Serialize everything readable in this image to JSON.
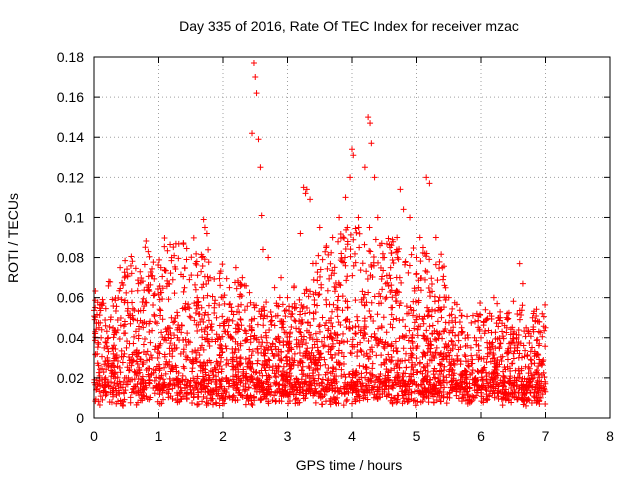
{
  "colors": {
    "series": "#ff0000",
    "background": "#ffffff",
    "axis": "#000000",
    "grid": "#a0a0a0"
  },
  "chart_data": {
    "type": "scatter",
    "title": "Day 335 of 2016, Rate Of TEC Index for receiver mzac",
    "xlabel": "GPS time / hours",
    "ylabel": "ROTI / TECUs",
    "xlim": [
      0,
      8
    ],
    "ylim": [
      0,
      0.18
    ],
    "xticks": [
      0,
      1,
      2,
      3,
      4,
      5,
      6,
      7,
      8
    ],
    "xtick_labels": [
      "0",
      "1",
      "2",
      "3",
      "4",
      "5",
      "6",
      "7",
      "8"
    ],
    "yticks": [
      0,
      0.02,
      0.04,
      0.06,
      0.08,
      0.1,
      0.12,
      0.14,
      0.16,
      0.18
    ],
    "ytick_labels": [
      "0",
      "0.02",
      "0.04",
      "0.06",
      "0.08",
      "0.1",
      "0.12",
      "0.14",
      "0.16",
      "0.18"
    ],
    "grid": true,
    "marker": "+",
    "series": [
      {
        "name": "ROTI",
        "color": "#ff0000",
        "note": "Dense cloud of ~5000 points from 0 to 7 h; values listed are the distinct outliers plus a representative sample of the dense band",
        "x": [
          0.02,
          0.05,
          0.08,
          0.12,
          0.18,
          0.22,
          0.3,
          0.35,
          0.4,
          0.5,
          0.6,
          0.7,
          0.85,
          0.9,
          1.0,
          1.1,
          1.15,
          1.2,
          1.3,
          1.4,
          1.5,
          1.6,
          1.7,
          1.72,
          1.75,
          1.8,
          1.9,
          2.0,
          2.1,
          2.2,
          2.3,
          2.45,
          2.48,
          2.5,
          2.52,
          2.55,
          2.58,
          2.6,
          2.62,
          2.7,
          2.8,
          2.9,
          3.0,
          3.1,
          3.2,
          3.25,
          3.28,
          3.3,
          3.35,
          3.5,
          3.6,
          3.7,
          3.8,
          3.9,
          3.97,
          4.0,
          4.02,
          4.1,
          4.2,
          4.25,
          4.28,
          4.3,
          4.35,
          4.4,
          4.5,
          4.6,
          4.7,
          4.75,
          4.8,
          4.9,
          5.0,
          5.05,
          5.1,
          5.15,
          5.2,
          5.3,
          5.4,
          5.5,
          5.6,
          5.7,
          5.8,
          5.9,
          6.0,
          6.1,
          6.2,
          6.25,
          6.3,
          6.4,
          6.5,
          6.55,
          6.6,
          6.65,
          6.7,
          6.8,
          6.9,
          6.95,
          7.0
        ],
        "y": [
          0.043,
          0.032,
          0.02,
          0.044,
          0.046,
          0.04,
          0.032,
          0.03,
          0.025,
          0.02,
          0.028,
          0.025,
          0.064,
          0.03,
          0.035,
          0.04,
          0.067,
          0.05,
          0.045,
          0.055,
          0.05,
          0.06,
          0.099,
          0.095,
          0.092,
          0.07,
          0.05,
          0.06,
          0.065,
          0.075,
          0.07,
          0.142,
          0.177,
          0.17,
          0.162,
          0.139,
          0.125,
          0.101,
          0.084,
          0.08,
          0.065,
          0.07,
          0.06,
          0.065,
          0.092,
          0.115,
          0.112,
          0.114,
          0.109,
          0.095,
          0.085,
          0.09,
          0.1,
          0.11,
          0.12,
          0.134,
          0.131,
          0.1,
          0.125,
          0.15,
          0.147,
          0.137,
          0.12,
          0.1,
          0.08,
          0.075,
          0.09,
          0.114,
          0.104,
          0.1,
          0.08,
          0.09,
          0.085,
          0.12,
          0.117,
          0.09,
          0.075,
          0.06,
          0.05,
          0.045,
          0.04,
          0.04,
          0.04,
          0.035,
          0.06,
          0.057,
          0.05,
          0.045,
          0.042,
          0.04,
          0.077,
          0.067,
          0.045,
          0.05,
          0.048,
          0.052,
          0.045
        ]
      }
    ]
  }
}
